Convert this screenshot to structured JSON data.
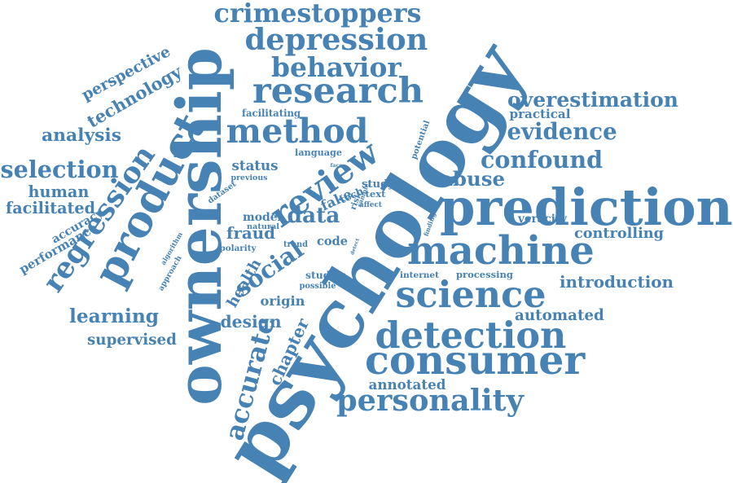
{
  "color": "#4682b4",
  "words": [
    {
      "text": "psychology"
    },
    {
      "text": "ownership"
    },
    {
      "text": "prediction"
    },
    {
      "text": "machine"
    },
    {
      "text": "consumer"
    },
    {
      "text": "detection"
    },
    {
      "text": "science"
    },
    {
      "text": "research"
    },
    {
      "text": "method"
    },
    {
      "text": "review"
    },
    {
      "text": "regression"
    },
    {
      "text": "depression"
    },
    {
      "text": "crimestoppers"
    },
    {
      "text": "behavior"
    },
    {
      "text": "personality"
    },
    {
      "text": "product"
    },
    {
      "text": "data"
    },
    {
      "text": "social"
    },
    {
      "text": "confound"
    },
    {
      "text": "evidence"
    },
    {
      "text": "overestimation"
    },
    {
      "text": "selection"
    },
    {
      "text": "technology"
    },
    {
      "text": "learning"
    },
    {
      "text": "accurate"
    },
    {
      "text": "abuse"
    },
    {
      "text": "analysis"
    },
    {
      "text": "design"
    },
    {
      "text": "origin"
    },
    {
      "text": "supervised"
    },
    {
      "text": "chapter"
    },
    {
      "text": "introduction"
    },
    {
      "text": "controlling"
    },
    {
      "text": "automated"
    },
    {
      "text": "health"
    },
    {
      "text": "human"
    },
    {
      "text": "perspective"
    },
    {
      "text": "fraud"
    },
    {
      "text": "status"
    },
    {
      "text": "annotated"
    },
    {
      "text": "facilitated"
    },
    {
      "text": "processing"
    },
    {
      "text": "veracity"
    },
    {
      "text": "practical"
    },
    {
      "text": "studies"
    },
    {
      "text": "accuracy"
    },
    {
      "text": "performance"
    },
    {
      "text": "model"
    },
    {
      "text": "fake"
    },
    {
      "text": "tech"
    },
    {
      "text": "study"
    },
    {
      "text": "code"
    },
    {
      "text": "facilitating"
    },
    {
      "text": "language"
    },
    {
      "text": "previous"
    },
    {
      "text": "natural"
    },
    {
      "text": "polarity"
    },
    {
      "text": "text"
    },
    {
      "text": "trend"
    },
    {
      "text": "possible"
    },
    {
      "text": "internet"
    },
    {
      "text": "approach"
    },
    {
      "text": "algorithm"
    },
    {
      "text": "dataset"
    },
    {
      "text": "potential"
    },
    {
      "text": "finding"
    },
    {
      "text": "sample"
    },
    {
      "text": "risk"
    },
    {
      "text": "affect"
    },
    {
      "text": "detect"
    },
    {
      "text": "face"
    }
  ]
}
